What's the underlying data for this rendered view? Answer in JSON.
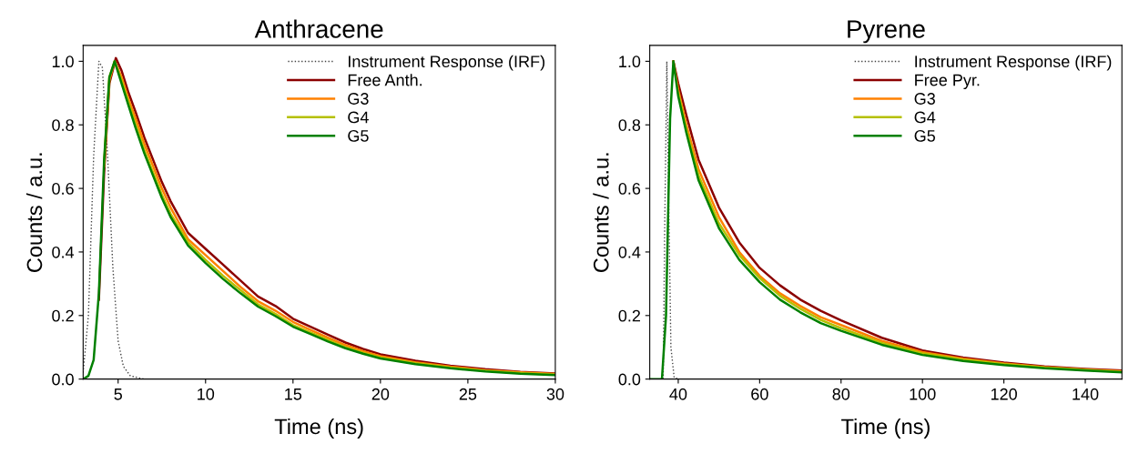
{
  "chart_data": [
    {
      "type": "line",
      "title": "Anthracene",
      "xlabel": "Time (ns)",
      "ylabel": "Counts / a.u.",
      "xlim": [
        3,
        30
      ],
      "ylim": [
        0,
        1.05
      ],
      "xticks": [
        5,
        10,
        15,
        20,
        25,
        30
      ],
      "yticks": [
        {
          "value": 0,
          "label": "0.0"
        },
        {
          "value": 0.2,
          "label": "0.2"
        },
        {
          "value": 0.4,
          "label": "0.4"
        },
        {
          "value": 0.6,
          "label": "0.6"
        },
        {
          "value": 0.8,
          "label": "0.8"
        },
        {
          "value": 1,
          "label": "1.0"
        }
      ],
      "grid": false,
      "legend": "top right",
      "marker": "none",
      "series": [
        {
          "name": "Instrument Response (IRF)",
          "color": "#444444",
          "line_style": "dotted",
          "x": [
            3,
            3.3,
            3.6,
            3.9,
            4.1,
            4.4,
            4.7,
            5.0,
            5.3,
            5.7,
            6.5,
            30
          ],
          "values": [
            0.02,
            0.2,
            0.7,
            1.0,
            0.98,
            0.7,
            0.35,
            0.12,
            0.04,
            0.01,
            0,
            0
          ]
        },
        {
          "name": "Free Anth.",
          "color": "#8b0000",
          "line_style": "solid",
          "x": [
            3.9,
            4.2,
            4.5,
            4.87,
            5.2,
            5.6,
            6,
            6.5,
            7,
            7.5,
            8,
            9,
            10,
            11,
            12,
            13,
            14,
            15,
            16,
            17,
            18,
            19,
            20,
            22,
            24,
            26,
            28,
            30
          ],
          "values": [
            0.25,
            0.65,
            0.93,
            1.01,
            0.97,
            0.9,
            0.84,
            0.76,
            0.69,
            0.62,
            0.56,
            0.46,
            0.41,
            0.36,
            0.31,
            0.26,
            0.23,
            0.19,
            0.165,
            0.14,
            0.115,
            0.095,
            0.078,
            0.058,
            0.042,
            0.031,
            0.023,
            0.018
          ]
        },
        {
          "name": "G3",
          "color": "#ff8000",
          "line_style": "solid",
          "x": [
            4.2,
            4.5,
            4.8,
            5.2,
            5.6,
            6,
            6.5,
            7,
            7.5,
            8,
            9,
            10,
            11,
            12,
            13,
            14,
            15,
            16,
            17,
            18,
            19,
            20,
            22,
            24,
            26,
            28,
            30
          ],
          "values": [
            0.67,
            0.94,
            1.0,
            0.95,
            0.88,
            0.82,
            0.74,
            0.67,
            0.6,
            0.54,
            0.44,
            0.39,
            0.34,
            0.29,
            0.245,
            0.215,
            0.18,
            0.155,
            0.13,
            0.107,
            0.088,
            0.072,
            0.053,
            0.039,
            0.028,
            0.021,
            0.016
          ]
        },
        {
          "name": "G4",
          "color": "#b5c000",
          "line_style": "solid",
          "x": [
            4.2,
            4.5,
            4.8,
            5.2,
            5.6,
            6,
            6.5,
            7,
            7.5,
            8,
            9,
            10,
            11,
            12,
            13,
            14,
            15,
            16,
            17,
            18,
            19,
            20,
            22,
            24,
            26,
            28,
            30
          ],
          "values": [
            0.68,
            0.95,
            1.0,
            0.94,
            0.87,
            0.8,
            0.72,
            0.65,
            0.58,
            0.52,
            0.43,
            0.375,
            0.325,
            0.28,
            0.235,
            0.205,
            0.17,
            0.147,
            0.123,
            0.1,
            0.083,
            0.068,
            0.05,
            0.036,
            0.026,
            0.019,
            0.014
          ]
        },
        {
          "name": "G5",
          "color": "#008000",
          "line_style": "solid",
          "x": [
            3,
            3.3,
            3.6,
            3.9,
            4.2,
            4.5,
            4.8,
            5.2,
            5.6,
            6,
            6.5,
            7,
            7.5,
            8,
            9,
            10,
            11,
            12,
            13,
            14,
            15,
            16,
            17,
            18,
            19,
            20,
            22,
            24,
            26,
            28,
            30
          ],
          "values": [
            0,
            0.01,
            0.06,
            0.27,
            0.69,
            0.95,
            1.0,
            0.93,
            0.86,
            0.79,
            0.71,
            0.64,
            0.57,
            0.51,
            0.42,
            0.365,
            0.315,
            0.27,
            0.228,
            0.198,
            0.165,
            0.142,
            0.118,
            0.097,
            0.08,
            0.065,
            0.047,
            0.034,
            0.024,
            0.017,
            0.013
          ]
        }
      ]
    },
    {
      "type": "line",
      "title": "Pyrene",
      "xlabel": "Time (ns)",
      "ylabel": "Counts / a.u.",
      "xlim": [
        33,
        149
      ],
      "ylim": [
        0,
        1.05
      ],
      "xticks": [
        40,
        60,
        80,
        100,
        120,
        140
      ],
      "yticks": [
        {
          "value": 0,
          "label": "0.0"
        },
        {
          "value": 0.2,
          "label": "0.2"
        },
        {
          "value": 0.4,
          "label": "0.4"
        },
        {
          "value": 0.6,
          "label": "0.6"
        },
        {
          "value": 0.8,
          "label": "0.8"
        },
        {
          "value": 1,
          "label": "1.0"
        }
      ],
      "grid": false,
      "legend": "top right",
      "marker": "none",
      "series": [
        {
          "name": "Instrument Response (IRF)",
          "color": "#444444",
          "line_style": "dotted",
          "x": [
            36.3,
            36.7,
            37.2,
            37.6,
            38.2,
            39,
            40,
            149
          ],
          "values": [
            0,
            0.5,
            1.0,
            0.6,
            0.1,
            0.005,
            0,
            0
          ]
        },
        {
          "name": "Free Pyr.",
          "color": "#8b0000",
          "line_style": "solid",
          "x": [
            38.8,
            40,
            42,
            45,
            50,
            55,
            60,
            65,
            70,
            75,
            80,
            90,
            100,
            110,
            120,
            130,
            140,
            149
          ],
          "values": [
            1.0,
            0.93,
            0.83,
            0.69,
            0.54,
            0.43,
            0.35,
            0.295,
            0.25,
            0.215,
            0.185,
            0.13,
            0.09,
            0.068,
            0.052,
            0.04,
            0.032,
            0.027
          ]
        },
        {
          "name": "G3",
          "color": "#ff8000",
          "line_style": "solid",
          "x": [
            38.8,
            40,
            42,
            45,
            50,
            55,
            60,
            65,
            70,
            75,
            80,
            90,
            100,
            110,
            120,
            130,
            140,
            149
          ],
          "values": [
            1.0,
            0.91,
            0.8,
            0.66,
            0.51,
            0.4,
            0.325,
            0.27,
            0.23,
            0.195,
            0.17,
            0.12,
            0.085,
            0.064,
            0.049,
            0.038,
            0.03,
            0.025
          ]
        },
        {
          "name": "G4",
          "color": "#b5c000",
          "line_style": "solid",
          "x": [
            40,
            42,
            45,
            50,
            55,
            60,
            65,
            70,
            75,
            80,
            90,
            100,
            110,
            120,
            130,
            140,
            149
          ],
          "values": [
            0.9,
            0.785,
            0.64,
            0.49,
            0.39,
            0.318,
            0.262,
            0.221,
            0.186,
            0.16,
            0.114,
            0.081,
            0.061,
            0.047,
            0.036,
            0.029,
            0.023
          ]
        },
        {
          "name": "G5",
          "color": "#008000",
          "line_style": "solid",
          "x": [
            33,
            36,
            37,
            38,
            38.8,
            40,
            42,
            45,
            50,
            55,
            60,
            65,
            70,
            75,
            80,
            90,
            100,
            110,
            120,
            130,
            140,
            149
          ],
          "values": [
            0,
            0,
            0.2,
            0.82,
            1.0,
            0.89,
            0.775,
            0.625,
            0.475,
            0.375,
            0.305,
            0.25,
            0.21,
            0.176,
            0.152,
            0.108,
            0.076,
            0.057,
            0.044,
            0.034,
            0.027,
            0.021
          ]
        }
      ]
    }
  ]
}
